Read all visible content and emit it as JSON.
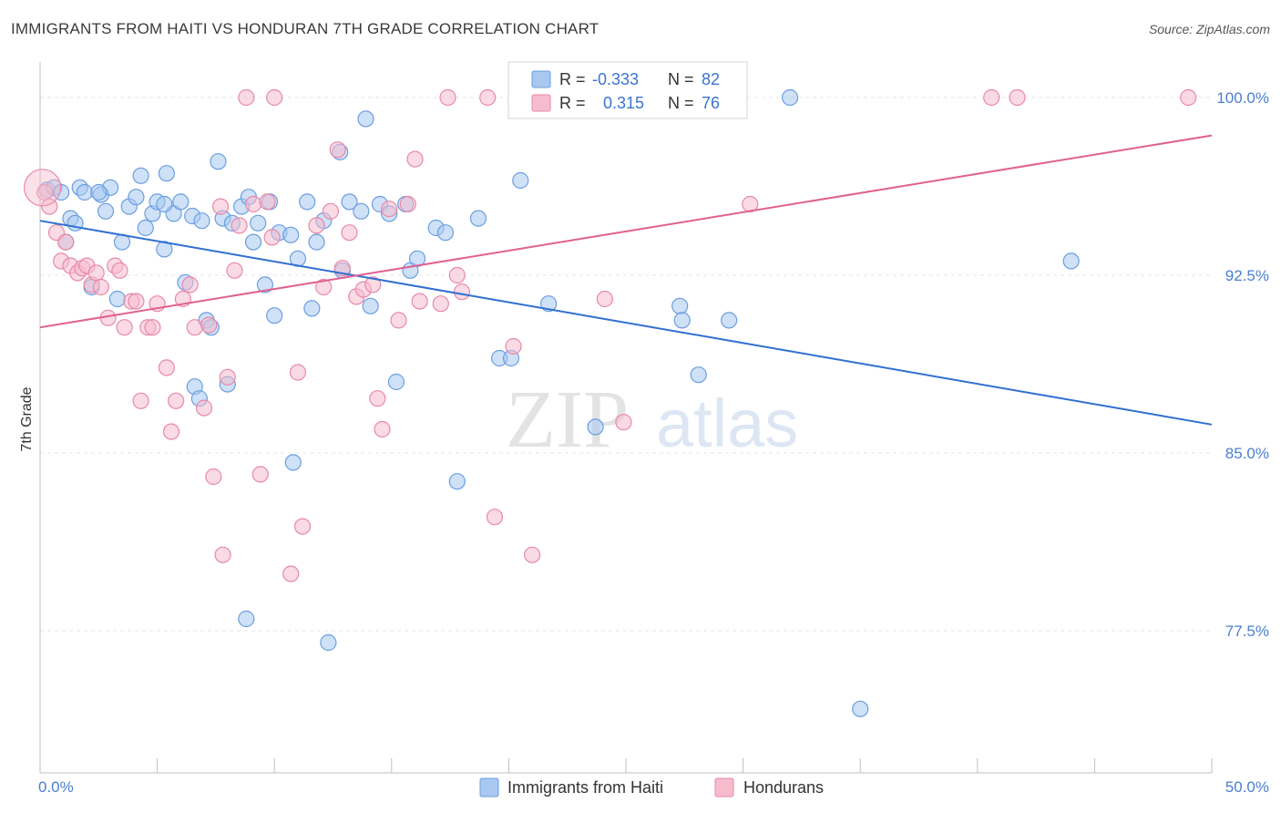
{
  "title": "IMMIGRANTS FROM HAITI VS HONDURAN 7TH GRADE CORRELATION CHART",
  "source": "Source: ZipAtlas.com",
  "watermark": {
    "zip": "ZIP",
    "atlas": "atlas"
  },
  "colors": {
    "haiti_fill": "#a8c8f0",
    "haiti_stroke": "#6a9ee0",
    "haiti_line": "#2f6fd0",
    "honduran_fill": "#f6bccd",
    "honduran_stroke": "#e889a8",
    "honduran_line": "#e06090",
    "tick_text": "#4a7fd0"
  },
  "legend": {
    "rows": [
      {
        "r_label": "R =",
        "r_value": "-0.333",
        "n_label": "N =",
        "n_value": "82"
      },
      {
        "r_label": "R =",
        "r_value": "0.315",
        "n_label": "N =",
        "n_value": "76"
      }
    ]
  },
  "chart_data": {
    "type": "scatter",
    "title": "IMMIGRANTS FROM HAITI VS HONDURAN 7TH GRADE CORRELATION CHART",
    "xlabel": "",
    "ylabel": "7th Grade",
    "xlim": [
      0,
      50
    ],
    "ylim": [
      71.5,
      101.5
    ],
    "x_tick_labels": [
      "0.0%",
      "50.0%"
    ],
    "y_ticks": [
      77.5,
      85.0,
      92.5,
      100.0
    ],
    "y_tick_labels": [
      "77.5%",
      "85.0%",
      "92.5%",
      "100.0%"
    ],
    "grid": true,
    "legend_position": "top-center",
    "series": [
      {
        "name": "Immigrants from Haiti",
        "color": "#a8c8f0",
        "trend": {
          "x0": 0,
          "y0": 94.8,
          "x1": 50,
          "y1": 86.2
        },
        "points": [
          [
            0.3,
            96.1
          ],
          [
            0.6,
            96.2
          ],
          [
            0.9,
            96.0
          ],
          [
            1.1,
            93.9
          ],
          [
            1.3,
            94.9
          ],
          [
            1.5,
            94.7
          ],
          [
            1.7,
            96.2
          ],
          [
            1.9,
            96.0
          ],
          [
            2.2,
            92.0
          ],
          [
            2.6,
            95.9
          ],
          [
            2.8,
            95.2
          ],
          [
            3.0,
            96.2
          ],
          [
            3.3,
            91.5
          ],
          [
            3.5,
            93.9
          ],
          [
            3.8,
            95.4
          ],
          [
            4.1,
            95.8
          ],
          [
            4.3,
            96.7
          ],
          [
            4.5,
            94.5
          ],
          [
            4.8,
            95.1
          ],
          [
            5.0,
            95.6
          ],
          [
            5.3,
            93.6
          ],
          [
            5.4,
            96.8
          ],
          [
            5.7,
            95.1
          ],
          [
            6.0,
            95.6
          ],
          [
            6.2,
            92.2
          ],
          [
            6.5,
            95.0
          ],
          [
            6.6,
            87.8
          ],
          [
            6.8,
            87.3
          ],
          [
            7.1,
            90.6
          ],
          [
            7.3,
            90.3
          ],
          [
            7.6,
            97.3
          ],
          [
            7.8,
            94.9
          ],
          [
            8.0,
            87.9
          ],
          [
            8.2,
            94.7
          ],
          [
            8.6,
            95.4
          ],
          [
            8.8,
            78.0
          ],
          [
            8.9,
            95.8
          ],
          [
            9.1,
            93.9
          ],
          [
            9.3,
            94.7
          ],
          [
            9.6,
            92.1
          ],
          [
            9.8,
            95.6
          ],
          [
            10.0,
            90.8
          ],
          [
            10.2,
            94.3
          ],
          [
            10.7,
            94.2
          ],
          [
            10.8,
            84.6
          ],
          [
            11.0,
            93.2
          ],
          [
            11.4,
            95.6
          ],
          [
            11.6,
            91.1
          ],
          [
            11.8,
            93.9
          ],
          [
            12.1,
            94.8
          ],
          [
            12.3,
            77.0
          ],
          [
            12.8,
            97.7
          ],
          [
            12.9,
            92.7
          ],
          [
            13.2,
            95.6
          ],
          [
            13.7,
            95.2
          ],
          [
            13.9,
            99.1
          ],
          [
            14.1,
            91.2
          ],
          [
            14.5,
            95.5
          ],
          [
            14.9,
            95.1
          ],
          [
            15.2,
            88.0
          ],
          [
            15.6,
            95.5
          ],
          [
            15.8,
            92.7
          ],
          [
            16.1,
            93.2
          ],
          [
            16.9,
            94.5
          ],
          [
            17.3,
            94.3
          ],
          [
            17.8,
            83.8
          ],
          [
            18.7,
            94.9
          ],
          [
            19.6,
            89.0
          ],
          [
            20.1,
            89.0
          ],
          [
            20.5,
            96.5
          ],
          [
            21.7,
            91.3
          ],
          [
            23.7,
            86.1
          ],
          [
            27.3,
            91.2
          ],
          [
            27.4,
            90.6
          ],
          [
            28.1,
            88.3
          ],
          [
            29.4,
            90.6
          ],
          [
            32.0,
            100.0
          ],
          [
            35.0,
            74.2
          ],
          [
            44.0,
            93.1
          ],
          [
            5.3,
            95.5
          ],
          [
            6.9,
            94.8
          ],
          [
            2.5,
            96.0
          ]
        ]
      },
      {
        "name": "Hondurans",
        "color": "#f6bccd",
        "trend": {
          "x0": 0,
          "y0": 90.3,
          "x1": 50,
          "y1": 98.4
        },
        "points": [
          [
            0.2,
            96.0
          ],
          [
            0.4,
            95.4
          ],
          [
            0.7,
            94.3
          ],
          [
            0.9,
            93.1
          ],
          [
            1.1,
            93.9
          ],
          [
            1.3,
            92.9
          ],
          [
            1.6,
            92.6
          ],
          [
            1.8,
            92.8
          ],
          [
            2.0,
            92.9
          ],
          [
            2.2,
            92.1
          ],
          [
            2.4,
            92.6
          ],
          [
            2.6,
            92.0
          ],
          [
            2.9,
            90.7
          ],
          [
            3.2,
            92.9
          ],
          [
            3.4,
            92.7
          ],
          [
            3.6,
            90.3
          ],
          [
            3.9,
            91.4
          ],
          [
            4.1,
            91.4
          ],
          [
            4.3,
            87.2
          ],
          [
            4.6,
            90.3
          ],
          [
            4.8,
            90.3
          ],
          [
            5.0,
            91.3
          ],
          [
            5.4,
            88.6
          ],
          [
            5.6,
            85.9
          ],
          [
            5.8,
            87.2
          ],
          [
            6.1,
            91.5
          ],
          [
            6.4,
            92.1
          ],
          [
            6.6,
            90.3
          ],
          [
            7.0,
            86.9
          ],
          [
            7.2,
            90.4
          ],
          [
            7.4,
            84.0
          ],
          [
            7.7,
            95.4
          ],
          [
            7.8,
            80.7
          ],
          [
            8.0,
            88.2
          ],
          [
            8.3,
            92.7
          ],
          [
            8.5,
            94.6
          ],
          [
            8.8,
            100.0
          ],
          [
            9.1,
            95.5
          ],
          [
            9.4,
            84.1
          ],
          [
            9.7,
            95.6
          ],
          [
            9.9,
            94.1
          ],
          [
            10.0,
            100.0
          ],
          [
            10.7,
            79.9
          ],
          [
            11.0,
            88.4
          ],
          [
            11.2,
            81.9
          ],
          [
            11.8,
            94.6
          ],
          [
            12.1,
            92.0
          ],
          [
            12.4,
            95.2
          ],
          [
            12.7,
            97.8
          ],
          [
            12.9,
            92.8
          ],
          [
            13.2,
            94.3
          ],
          [
            13.5,
            91.6
          ],
          [
            13.8,
            91.9
          ],
          [
            14.2,
            92.1
          ],
          [
            14.4,
            87.3
          ],
          [
            14.6,
            86.0
          ],
          [
            14.9,
            95.3
          ],
          [
            15.3,
            90.6
          ],
          [
            15.7,
            95.5
          ],
          [
            16.0,
            97.4
          ],
          [
            16.2,
            91.4
          ],
          [
            17.4,
            100.0
          ],
          [
            17.8,
            92.5
          ],
          [
            18.0,
            91.8
          ],
          [
            19.1,
            100.0
          ],
          [
            19.4,
            82.3
          ],
          [
            20.2,
            89.5
          ],
          [
            21.0,
            80.7
          ],
          [
            24.1,
            91.5
          ],
          [
            24.9,
            86.3
          ],
          [
            28.5,
            100.0
          ],
          [
            30.3,
            95.5
          ],
          [
            40.6,
            100.0
          ],
          [
            41.7,
            100.0
          ],
          [
            49.0,
            100.0
          ],
          [
            17.1,
            91.3
          ]
        ]
      }
    ]
  },
  "bottom_legend": [
    {
      "label": "Immigrants from Haiti"
    },
    {
      "label": "Hondurans"
    }
  ]
}
